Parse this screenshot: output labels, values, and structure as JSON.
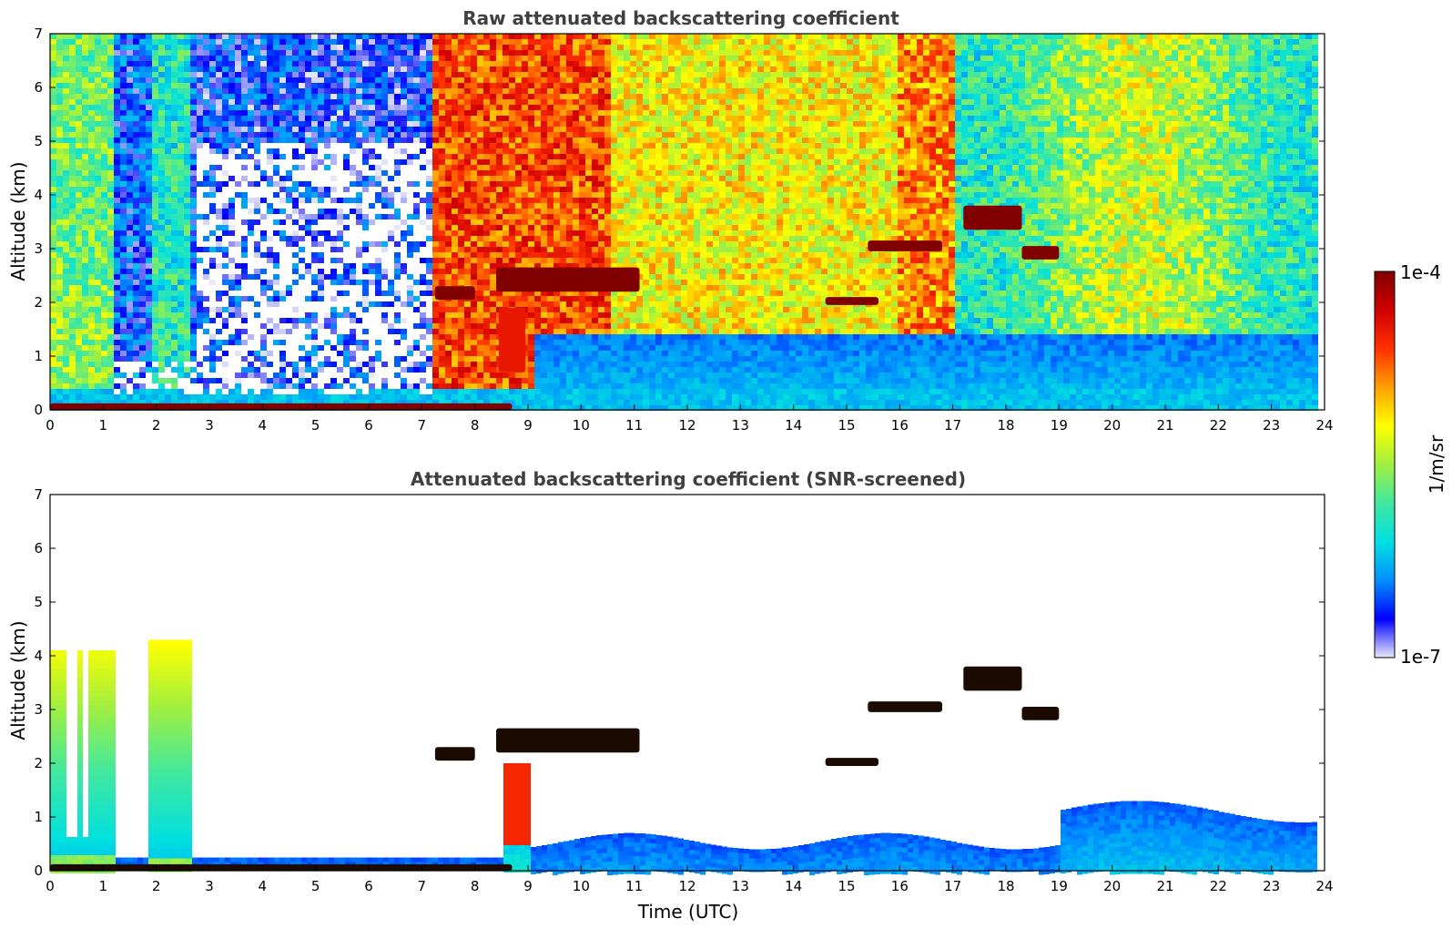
{
  "chart_data": [
    {
      "type": "heatmap",
      "title": "Raw attenuated backscattering coefficient",
      "xlabel": "",
      "ylabel": "Altitude (km)",
      "xlim": [
        0,
        24
      ],
      "ylim": [
        0,
        7
      ],
      "xticks": [
        "0",
        "1",
        "2",
        "3",
        "4",
        "5",
        "6",
        "7",
        "8",
        "9",
        "10",
        "11",
        "12",
        "13",
        "14",
        "15",
        "16",
        "17",
        "18",
        "19",
        "20",
        "21",
        "22",
        "23",
        "24"
      ],
      "yticks": [
        "0",
        "1",
        "2",
        "3",
        "4",
        "5",
        "6",
        "7"
      ],
      "data_end_time": 23.8,
      "features": [
        {
          "t0": 0.0,
          "t1": 8.7,
          "alt0": 0.0,
          "alt1": 0.12,
          "level": 1.0
        },
        {
          "t0": 8.45,
          "t1": 8.95,
          "alt0": 0.7,
          "alt1": 1.9,
          "level": 0.85
        },
        {
          "t0": 7.25,
          "t1": 8.0,
          "alt0": 2.05,
          "alt1": 2.3,
          "level": 1.0
        },
        {
          "t0": 8.4,
          "t1": 11.1,
          "alt0": 2.2,
          "alt1": 2.65,
          "level": 1.0
        },
        {
          "t0": 14.6,
          "t1": 15.6,
          "alt0": 1.95,
          "alt1": 2.1,
          "level": 1.0
        },
        {
          "t0": 15.4,
          "t1": 16.8,
          "alt0": 2.95,
          "alt1": 3.15,
          "level": 1.0
        },
        {
          "t0": 17.2,
          "t1": 18.3,
          "alt0": 3.35,
          "alt1": 3.8,
          "level": 1.0
        },
        {
          "t0": 18.3,
          "t1": 19.0,
          "alt0": 2.8,
          "alt1": 3.05,
          "level": 1.0
        }
      ]
    },
    {
      "type": "heatmap",
      "title": "Attenuated backscattering coefficient (SNR-screened)",
      "xlabel": "Time (UTC)",
      "ylabel": "Altitude (km)",
      "xlim": [
        0,
        24
      ],
      "ylim": [
        0,
        7
      ],
      "xticks": [
        "0",
        "1",
        "2",
        "3",
        "4",
        "5",
        "6",
        "7",
        "8",
        "9",
        "10",
        "11",
        "12",
        "13",
        "14",
        "15",
        "16",
        "17",
        "18",
        "19",
        "20",
        "21",
        "22",
        "23",
        "24"
      ],
      "yticks": [
        "0",
        "1",
        "2",
        "3",
        "4",
        "5",
        "6",
        "7"
      ],
      "data_end_time": 23.8
    }
  ],
  "colorbar": {
    "label": "1/m/sr",
    "max_label": "1e-4",
    "min_label": "1e-7",
    "scale": "log",
    "range": [
      1e-07,
      0.0001
    ],
    "colors": [
      "#e8e8f8",
      "#0000ff",
      "#0090ff",
      "#00e0e0",
      "#40e8a0",
      "#a0f040",
      "#ffff00",
      "#ffa000",
      "#ff3000",
      "#d00000",
      "#800000"
    ]
  }
}
